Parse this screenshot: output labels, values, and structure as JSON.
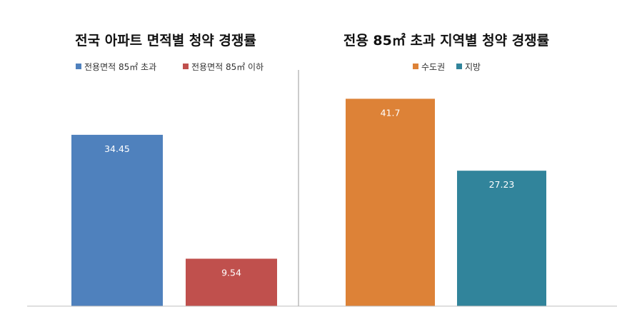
{
  "chart_data": [
    {
      "type": "bar",
      "title": "전국 아파트 면적별 청약 경쟁률",
      "categories": [
        "전용면적 85㎡ 초과",
        "전용면적 85㎡ 이하"
      ],
      "values": [
        34.45,
        9.54
      ],
      "value_labels": [
        "34.45",
        "9.54"
      ],
      "legend": [
        "전용면적 85㎡ 초과",
        "전용면적 85㎡ 이하"
      ],
      "colors": [
        "#4f81bd",
        "#c0504d"
      ],
      "ylim": [
        0,
        45
      ],
      "legend_position": "top",
      "grid": false
    },
    {
      "type": "bar",
      "title": "전용 85㎡ 초과 지역별 청약 경쟁률",
      "categories": [
        "수도권",
        "지방"
      ],
      "values": [
        41.7,
        27.23
      ],
      "value_labels": [
        "41.7",
        "27.23"
      ],
      "legend": [
        "수도권",
        "지방"
      ],
      "colors": [
        "#dd8237",
        "#31849b"
      ],
      "ylim": [
        0,
        45
      ],
      "legend_position": "top",
      "grid": false
    }
  ]
}
